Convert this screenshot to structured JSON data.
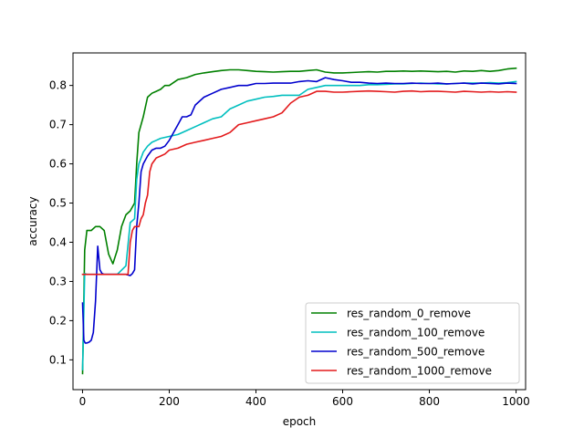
{
  "chart_data": {
    "type": "line",
    "xlabel": "epoch",
    "ylabel": "accuracy",
    "xlim": [
      -22,
      1022
    ],
    "ylim": [
      0.024,
      0.883
    ],
    "xticks": [
      0,
      200,
      400,
      600,
      800,
      1000
    ],
    "yticks": [
      0.1,
      0.2,
      0.3,
      0.4,
      0.5,
      0.6,
      0.7,
      0.8
    ],
    "grid": false,
    "legend_position": "lower-right",
    "series": [
      {
        "name": "res_random_0_remove",
        "color": "#008000",
        "x": [
          0,
          5,
          10,
          20,
          30,
          40,
          50,
          60,
          70,
          80,
          90,
          100,
          110,
          120,
          125,
          130,
          140,
          150,
          160,
          170,
          180,
          190,
          200,
          220,
          240,
          260,
          280,
          300,
          320,
          340,
          360,
          380,
          400,
          420,
          440,
          460,
          480,
          500,
          520,
          540,
          560,
          580,
          600,
          620,
          640,
          660,
          680,
          700,
          720,
          740,
          760,
          780,
          800,
          820,
          840,
          860,
          880,
          900,
          920,
          940,
          960,
          980,
          1000
        ],
        "y": [
          0.065,
          0.38,
          0.43,
          0.43,
          0.44,
          0.44,
          0.43,
          0.37,
          0.345,
          0.38,
          0.44,
          0.47,
          0.48,
          0.5,
          0.6,
          0.68,
          0.72,
          0.77,
          0.78,
          0.785,
          0.79,
          0.8,
          0.8,
          0.815,
          0.82,
          0.828,
          0.832,
          0.835,
          0.838,
          0.84,
          0.84,
          0.838,
          0.836,
          0.835,
          0.834,
          0.835,
          0.836,
          0.836,
          0.838,
          0.84,
          0.834,
          0.832,
          0.832,
          0.833,
          0.834,
          0.835,
          0.834,
          0.836,
          0.836,
          0.837,
          0.836,
          0.837,
          0.836,
          0.835,
          0.836,
          0.834,
          0.837,
          0.836,
          0.838,
          0.836,
          0.838,
          0.842,
          0.844
        ]
      },
      {
        "name": "res_random_100_remove",
        "color": "#00bfbf",
        "x": [
          0,
          5,
          10,
          20,
          40,
          60,
          80,
          100,
          110,
          120,
          125,
          130,
          140,
          150,
          160,
          170,
          180,
          200,
          220,
          240,
          260,
          280,
          300,
          320,
          340,
          360,
          380,
          400,
          420,
          440,
          460,
          480,
          500,
          520,
          540,
          560,
          580,
          600,
          620,
          640,
          660,
          680,
          700,
          720,
          740,
          760,
          780,
          800,
          820,
          840,
          860,
          880,
          900,
          920,
          940,
          960,
          980,
          1000
        ],
        "y": [
          0.075,
          0.32,
          0.318,
          0.318,
          0.318,
          0.318,
          0.318,
          0.34,
          0.45,
          0.46,
          0.56,
          0.6,
          0.63,
          0.645,
          0.655,
          0.66,
          0.665,
          0.67,
          0.675,
          0.685,
          0.695,
          0.705,
          0.715,
          0.72,
          0.74,
          0.75,
          0.76,
          0.765,
          0.77,
          0.772,
          0.775,
          0.775,
          0.775,
          0.79,
          0.795,
          0.8,
          0.8,
          0.8,
          0.8,
          0.8,
          0.802,
          0.802,
          0.803,
          0.804,
          0.804,
          0.805,
          0.806,
          0.805,
          0.804,
          0.804,
          0.805,
          0.806,
          0.806,
          0.806,
          0.807,
          0.806,
          0.807,
          0.81
        ]
      },
      {
        "name": "res_random_500_remove",
        "color": "#0000cd",
        "x": [
          0,
          3,
          6,
          10,
          15,
          20,
          25,
          30,
          35,
          40,
          45,
          50,
          60,
          80,
          100,
          110,
          115,
          120,
          125,
          130,
          135,
          140,
          150,
          160,
          170,
          180,
          190,
          200,
          210,
          220,
          230,
          240,
          250,
          260,
          280,
          300,
          320,
          340,
          360,
          380,
          400,
          420,
          440,
          460,
          480,
          500,
          520,
          540,
          560,
          580,
          600,
          620,
          640,
          660,
          680,
          700,
          720,
          740,
          760,
          780,
          800,
          820,
          840,
          860,
          880,
          900,
          920,
          940,
          960,
          980,
          1000
        ],
        "y": [
          0.245,
          0.15,
          0.143,
          0.143,
          0.145,
          0.15,
          0.17,
          0.25,
          0.39,
          0.33,
          0.32,
          0.318,
          0.318,
          0.318,
          0.318,
          0.315,
          0.32,
          0.33,
          0.44,
          0.5,
          0.58,
          0.6,
          0.62,
          0.635,
          0.64,
          0.64,
          0.645,
          0.66,
          0.68,
          0.7,
          0.72,
          0.72,
          0.725,
          0.75,
          0.77,
          0.78,
          0.79,
          0.795,
          0.8,
          0.8,
          0.805,
          0.805,
          0.806,
          0.806,
          0.806,
          0.81,
          0.812,
          0.81,
          0.82,
          0.815,
          0.812,
          0.808,
          0.808,
          0.806,
          0.805,
          0.806,
          0.805,
          0.805,
          0.806,
          0.805,
          0.805,
          0.806,
          0.804,
          0.805,
          0.806,
          0.804,
          0.806,
          0.805,
          0.804,
          0.806,
          0.805
        ]
      },
      {
        "name": "res_random_1000_remove",
        "color": "#e31a1c",
        "x": [
          0,
          10,
          20,
          40,
          60,
          80,
          90,
          95,
          100,
          105,
          110,
          115,
          120,
          125,
          130,
          135,
          140,
          145,
          150,
          155,
          160,
          170,
          180,
          190,
          200,
          220,
          240,
          260,
          280,
          300,
          320,
          340,
          360,
          380,
          400,
          420,
          440,
          460,
          480,
          500,
          520,
          540,
          560,
          580,
          600,
          620,
          640,
          660,
          680,
          700,
          720,
          740,
          760,
          780,
          800,
          820,
          840,
          860,
          880,
          900,
          920,
          940,
          960,
          980,
          1000
        ],
        "y": [
          0.318,
          0.318,
          0.318,
          0.318,
          0.318,
          0.318,
          0.318,
          0.318,
          0.318,
          0.318,
          0.4,
          0.43,
          0.44,
          0.44,
          0.44,
          0.46,
          0.47,
          0.5,
          0.52,
          0.58,
          0.6,
          0.615,
          0.62,
          0.625,
          0.635,
          0.64,
          0.65,
          0.655,
          0.66,
          0.665,
          0.67,
          0.68,
          0.7,
          0.705,
          0.71,
          0.715,
          0.72,
          0.73,
          0.755,
          0.77,
          0.775,
          0.785,
          0.785,
          0.783,
          0.783,
          0.784,
          0.785,
          0.786,
          0.785,
          0.784,
          0.783,
          0.785,
          0.786,
          0.784,
          0.785,
          0.785,
          0.784,
          0.783,
          0.785,
          0.784,
          0.783,
          0.784,
          0.783,
          0.784,
          0.783
        ]
      }
    ]
  }
}
